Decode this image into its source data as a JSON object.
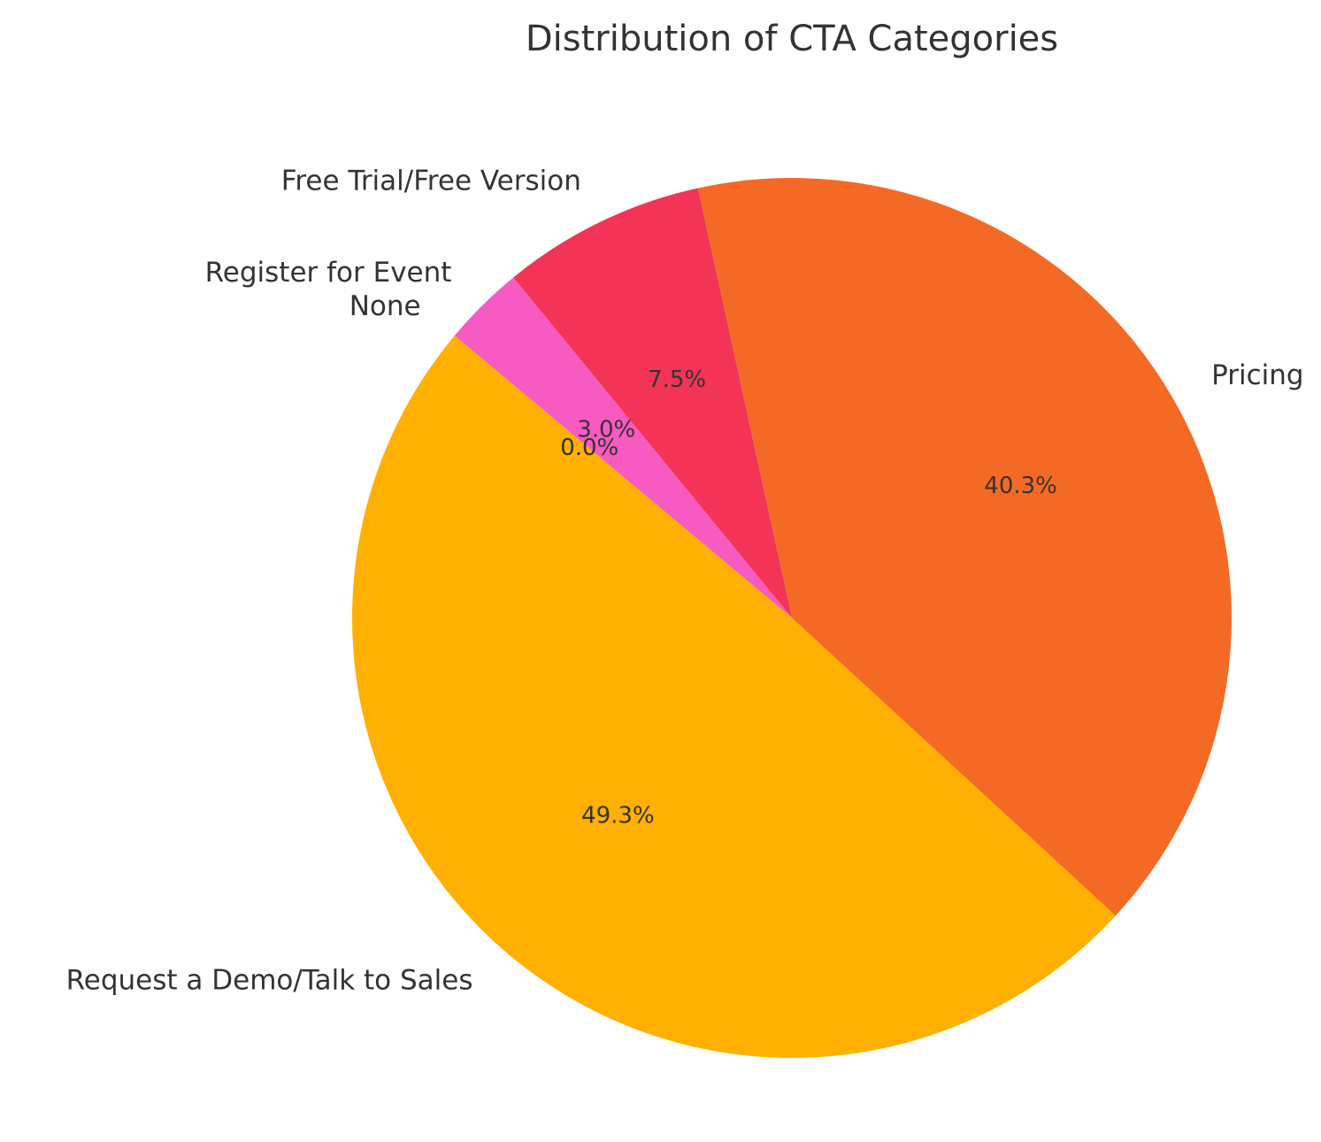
{
  "chart_data": {
    "type": "pie",
    "title": "Distribution of CTA Categories",
    "categories": [
      "Pricing",
      "Free Trial/Free Version",
      "Register for Event",
      "None",
      "Request a Demo/Talk to Sales"
    ],
    "values": [
      40.3,
      7.5,
      3.0,
      0.0,
      49.3
    ],
    "value_labels": [
      "40.3%",
      "7.5%",
      "3.0%",
      "0.0%",
      "49.3%"
    ],
    "colors": [
      "#f46a25",
      "#f33456",
      "#f75ac0",
      "#a05bd6",
      "#ffb000"
    ]
  }
}
